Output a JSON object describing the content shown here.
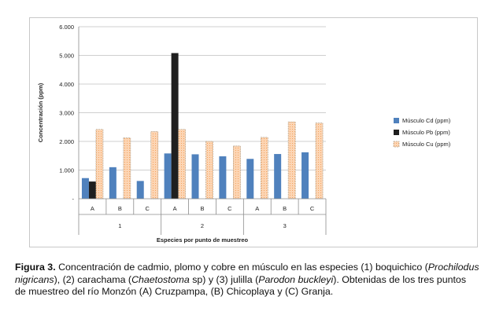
{
  "chart_data": {
    "type": "bar",
    "ylabel": "Concentración (ppm)",
    "xlabel": "Especies por punto de muestreo",
    "ylim": [
      0,
      6000
    ],
    "yticks": [
      "-",
      "1.000",
      "2.000",
      "3.000",
      "4.000",
      "5.000",
      "6.000"
    ],
    "ytick_values": [
      0,
      1000,
      2000,
      3000,
      4000,
      5000,
      6000
    ],
    "groups": [
      "1",
      "2",
      "3"
    ],
    "categories": [
      "A",
      "B",
      "C",
      "A",
      "B",
      "C",
      "A",
      "B",
      "C"
    ],
    "legend_position": "right",
    "grid": "horizontal",
    "series": [
      {
        "name": "Músculo Cd (ppm)",
        "color": "#4f81bd",
        "values": [
          720,
          1100,
          620,
          1580,
          1550,
          1480,
          1390,
          1560,
          1620
        ]
      },
      {
        "name": "Músculo Pb (ppm)",
        "color": "#1f1f1f",
        "values": [
          600,
          null,
          null,
          5080,
          null,
          null,
          null,
          null,
          null
        ]
      },
      {
        "name": "Músculo Cu (ppm)",
        "color": "#fac090",
        "values": [
          2420,
          2120,
          2340,
          2420,
          2000,
          1840,
          2140,
          2680,
          2640
        ]
      }
    ]
  },
  "caption": {
    "label": "Figura 3.",
    "text_1": " Concentración de cadmio, plomo y cobre en músculo en las especies (1) boquichico (",
    "species_1": "Prochilodus nigricans",
    "text_2": "), (2) carachama (",
    "species_2": "Chaetostoma",
    "text_3": " sp) y (3) julilla (",
    "species_3": "Parodon buckleyi",
    "text_4": "). Obtenidas de los tres puntos de muestreo del río Monzón (A) Cruzpampa, (B) Chicoplaya y (C) Granja."
  }
}
